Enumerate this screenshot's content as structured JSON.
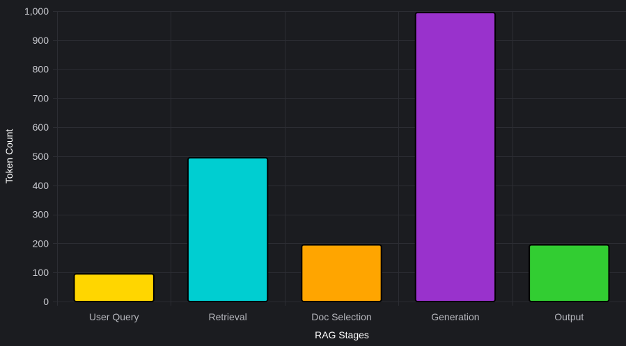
{
  "chart_data": {
    "type": "bar",
    "categories": [
      "User Query",
      "Retrieval",
      "Doc Selection",
      "Generation",
      "Output"
    ],
    "values": [
      95,
      495,
      195,
      995,
      195
    ],
    "colors": [
      "#ffd600",
      "#00ced1",
      "#ffa500",
      "#9932cc",
      "#32cd32"
    ],
    "bar_border_color": "#000000",
    "xlabel": "RAG Stages",
    "ylabel": "Token Count",
    "ylim": [
      0,
      1000
    ],
    "y_ticks": [
      0,
      100,
      200,
      300,
      400,
      500,
      600,
      700,
      800,
      900,
      1000
    ],
    "y_tick_labels": [
      "0",
      "100",
      "200",
      "300",
      "400",
      "500",
      "600",
      "700",
      "800",
      "900",
      "1,000"
    ],
    "grid": true,
    "background": "#1b1c20",
    "grid_color": "#2c2d33"
  }
}
